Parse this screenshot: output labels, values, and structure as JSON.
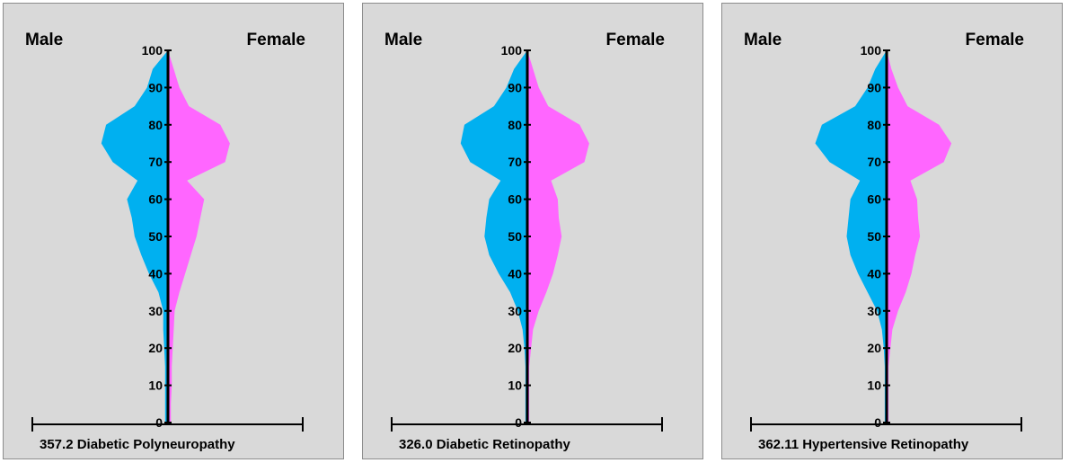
{
  "labels": {
    "male": "Male",
    "female": "Female"
  },
  "colors": {
    "male": "#00b0f0",
    "female": "#ff66ff",
    "axis": "#000000",
    "panel_bg": "#d9d9d9"
  },
  "chart_data": [
    {
      "type": "area",
      "title": "357.2 Diabetic Polyneuropathy",
      "x": [
        0,
        2,
        5,
        10,
        15,
        20,
        25,
        30,
        35,
        40,
        45,
        50,
        55,
        60,
        65,
        70,
        75,
        80,
        85,
        90,
        95,
        100
      ],
      "ylim": [
        0,
        100
      ],
      "yticks": [
        0,
        10,
        20,
        30,
        40,
        50,
        60,
        70,
        80,
        90,
        100
      ],
      "series": [
        {
          "name": "Male",
          "values": [
            0.03,
            0.03,
            0.03,
            0.03,
            0.03,
            0.04,
            0.05,
            0.05,
            0.1,
            0.2,
            0.28,
            0.35,
            0.38,
            0.43,
            0.32,
            0.58,
            0.7,
            0.65,
            0.35,
            0.22,
            0.16,
            0.0
          ]
        },
        {
          "name": "Female",
          "values": [
            0.03,
            0.03,
            0.03,
            0.04,
            0.04,
            0.05,
            0.06,
            0.07,
            0.12,
            0.18,
            0.24,
            0.3,
            0.34,
            0.38,
            0.2,
            0.6,
            0.65,
            0.55,
            0.22,
            0.12,
            0.06,
            0.0
          ]
        }
      ]
    },
    {
      "type": "area",
      "title": "326.0 Diabetic Retinopathy",
      "x": [
        0,
        2,
        5,
        10,
        15,
        20,
        25,
        30,
        35,
        40,
        45,
        50,
        55,
        60,
        65,
        70,
        75,
        80,
        85,
        90,
        95,
        100
      ],
      "ylim": [
        0,
        100
      ],
      "yticks": [
        0,
        10,
        20,
        30,
        40,
        50,
        60,
        70,
        80,
        90,
        100
      ],
      "series": [
        {
          "name": "Male",
          "values": [
            0.02,
            0.02,
            0.02,
            0.02,
            0.02,
            0.03,
            0.05,
            0.1,
            0.18,
            0.3,
            0.4,
            0.45,
            0.43,
            0.4,
            0.28,
            0.6,
            0.7,
            0.66,
            0.35,
            0.22,
            0.14,
            0.0
          ]
        },
        {
          "name": "Female",
          "values": [
            0.02,
            0.02,
            0.02,
            0.02,
            0.02,
            0.04,
            0.06,
            0.12,
            0.2,
            0.27,
            0.32,
            0.36,
            0.33,
            0.32,
            0.25,
            0.6,
            0.65,
            0.55,
            0.22,
            0.12,
            0.06,
            0.0
          ]
        }
      ]
    },
    {
      "type": "area",
      "title": "362.11 Hypertensive Retinopathy",
      "x": [
        0,
        2,
        5,
        10,
        15,
        20,
        25,
        30,
        35,
        40,
        45,
        50,
        55,
        60,
        65,
        70,
        75,
        80,
        85,
        90,
        95,
        100
      ],
      "ylim": [
        0,
        100
      ],
      "yticks": [
        0,
        10,
        20,
        30,
        40,
        50,
        60,
        70,
        80,
        90,
        100
      ],
      "series": [
        {
          "name": "Male",
          "values": [
            0.02,
            0.02,
            0.02,
            0.02,
            0.02,
            0.03,
            0.05,
            0.1,
            0.2,
            0.3,
            0.38,
            0.42,
            0.4,
            0.38,
            0.28,
            0.6,
            0.75,
            0.68,
            0.33,
            0.2,
            0.12,
            0.0
          ]
        },
        {
          "name": "Female",
          "values": [
            0.02,
            0.02,
            0.02,
            0.02,
            0.02,
            0.04,
            0.06,
            0.12,
            0.2,
            0.26,
            0.3,
            0.35,
            0.33,
            0.32,
            0.25,
            0.6,
            0.68,
            0.55,
            0.22,
            0.12,
            0.05,
            0.0
          ]
        }
      ]
    }
  ]
}
